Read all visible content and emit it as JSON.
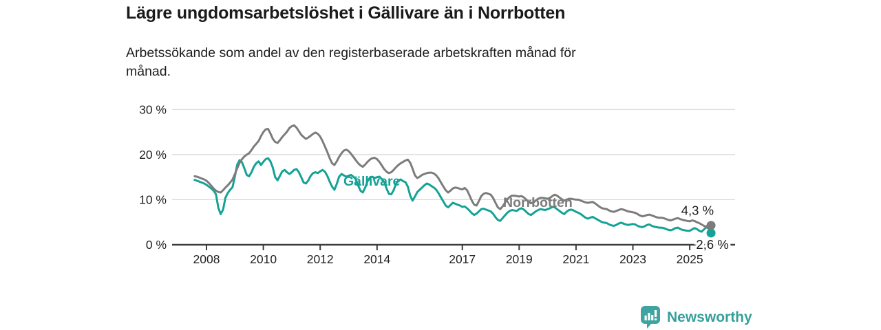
{
  "header": {
    "title": "Lägre ungdomsarbetslöshet i Gällivare än i Norrbotten",
    "subtitle": "Arbetssökande som andel av den registerbaserade arbetskraften månad för\nmånad."
  },
  "chart_data": {
    "type": "line",
    "title": "Lägre ungdomsarbetslöshet i Gällivare än i Norrbotten",
    "subtitle": "Arbetssökande som andel av den registerbaserade arbetskraften månad för månad.",
    "grid": "horizontal",
    "ylim": [
      0,
      30
    ],
    "y_axis": {
      "ticks": [
        {
          "value": 0,
          "label": "0 %"
        },
        {
          "value": 10,
          "label": "10 %"
        },
        {
          "value": 20,
          "label": "20 %"
        },
        {
          "value": 30,
          "label": "30 %"
        }
      ]
    },
    "x_axis": {
      "start_year": 2007,
      "start_month": 8,
      "frequency": "monthly",
      "ticks": [
        {
          "year": 2008,
          "label": "2008"
        },
        {
          "year": 2010,
          "label": "2010"
        },
        {
          "year": 2012,
          "label": "2012"
        },
        {
          "year": 2014,
          "label": "2014"
        },
        {
          "year": 2017,
          "label": "2017"
        },
        {
          "year": 2019,
          "label": "2019"
        },
        {
          "year": 2021,
          "label": "2021"
        },
        {
          "year": 2023,
          "label": "2023"
        },
        {
          "year": 2025,
          "label": "2025"
        }
      ]
    },
    "style": {
      "grid_color": "#d9d9d9",
      "axis_color": "#3c3c3c",
      "axis_text_color": "#222222",
      "annotation_color": "#1a1a1a"
    },
    "series": [
      {
        "name": "Gällivare",
        "color": "#15a296",
        "end_label": "2,6 %",
        "end_value": 2.6,
        "values": [
          14.4,
          14.2,
          14.0,
          13.8,
          13.6,
          13.3,
          12.9,
          12.5,
          12.0,
          11.2,
          8.2,
          6.8,
          7.8,
          10.4,
          11.5,
          12.2,
          12.8,
          15.2,
          17.8,
          18.8,
          18.3,
          16.9,
          15.5,
          15.2,
          16.1,
          17.3,
          18.1,
          18.5,
          17.7,
          18.4,
          19.0,
          19.2,
          18.5,
          17.1,
          15.0,
          14.3,
          15.3,
          16.3,
          16.6,
          16.1,
          15.7,
          16.1,
          16.6,
          16.8,
          16.1,
          15.0,
          13.8,
          13.6,
          14.3,
          15.3,
          15.9,
          16.1,
          15.9,
          16.3,
          16.6,
          16.2,
          15.3,
          14.0,
          12.9,
          12.2,
          13.5,
          15.1,
          15.7,
          15.4,
          15.1,
          15.3,
          15.5,
          15.1,
          14.6,
          13.2,
          12.0,
          11.6,
          12.7,
          14.1,
          14.9,
          15.1,
          14.8,
          15.0,
          15.1,
          14.6,
          13.9,
          12.5,
          11.3,
          11.2,
          12.1,
          13.5,
          14.3,
          14.5,
          14.1,
          13.9,
          12.9,
          10.9,
          9.8,
          10.7,
          11.7,
          12.2,
          12.7,
          13.2,
          13.6,
          13.4,
          13.0,
          12.7,
          12.2,
          11.4,
          10.5,
          9.6,
          8.7,
          8.3,
          8.8,
          9.3,
          9.1,
          8.9,
          8.7,
          8.4,
          8.5,
          8.1,
          7.6,
          7.0,
          6.6,
          6.9,
          7.4,
          7.9,
          8.0,
          7.8,
          7.6,
          7.4,
          6.9,
          6.1,
          5.5,
          5.3,
          5.9,
          6.5,
          7.1,
          7.5,
          7.7,
          7.6,
          7.5,
          7.9,
          8.1,
          7.8,
          7.3,
          6.8,
          6.6,
          7.0,
          7.4,
          7.7,
          7.9,
          7.8,
          7.7,
          7.9,
          8.1,
          8.4,
          8.3,
          7.9,
          7.5,
          7.1,
          6.8,
          7.3,
          7.7,
          7.8,
          7.6,
          7.3,
          7.1,
          6.8,
          6.4,
          6.0,
          5.8,
          6.0,
          6.2,
          5.9,
          5.6,
          5.3,
          5.0,
          4.9,
          4.8,
          4.5,
          4.3,
          4.2,
          4.4,
          4.7,
          4.9,
          4.7,
          4.5,
          4.4,
          4.5,
          4.6,
          4.5,
          4.2,
          4.0,
          3.9,
          4.1,
          4.4,
          4.5,
          4.2,
          4.0,
          3.9,
          3.8,
          3.8,
          3.7,
          3.5,
          3.3,
          3.2,
          3.4,
          3.7,
          3.8,
          3.5,
          3.3,
          3.2,
          3.1,
          3.1,
          3.4,
          3.7,
          3.5,
          3.1,
          2.9,
          3.4,
          3.9,
          3.6,
          2.6
        ]
      },
      {
        "name": "Norrbotten",
        "color": "#7c7c7c",
        "end_label": "4,3 %",
        "end_value": 4.3,
        "values": [
          15.2,
          15.1,
          14.9,
          14.7,
          14.5,
          14.2,
          13.7,
          13.1,
          12.5,
          12.0,
          11.7,
          11.6,
          12.1,
          12.7,
          13.2,
          13.8,
          14.5,
          15.7,
          17.0,
          18.2,
          19.0,
          19.6,
          20.0,
          20.3,
          21.0,
          21.8,
          22.4,
          23.0,
          24.1,
          25.0,
          25.6,
          25.7,
          24.7,
          23.5,
          22.8,
          22.6,
          23.2,
          23.9,
          24.5,
          25.1,
          25.9,
          26.3,
          26.5,
          26.0,
          25.2,
          24.4,
          23.9,
          23.5,
          23.8,
          24.2,
          24.6,
          24.9,
          24.6,
          24.0,
          23.0,
          21.8,
          20.6,
          19.2,
          18.1,
          17.7,
          18.5,
          19.5,
          20.3,
          20.9,
          21.1,
          20.8,
          20.2,
          19.5,
          18.8,
          18.1,
          17.6,
          17.3,
          17.8,
          18.4,
          18.9,
          19.2,
          19.3,
          19.0,
          18.4,
          17.6,
          16.8,
          16.2,
          15.9,
          16.1,
          16.6,
          17.2,
          17.7,
          18.1,
          18.4,
          18.7,
          18.9,
          18.2,
          16.9,
          15.4,
          14.8,
          15.1,
          15.5,
          15.7,
          15.9,
          16.0,
          16.0,
          15.8,
          15.4,
          14.7,
          13.8,
          12.9,
          12.1,
          11.6,
          12.0,
          12.5,
          12.7,
          12.6,
          12.4,
          12.3,
          12.6,
          12.1,
          11.0,
          9.8,
          8.9,
          8.7,
          9.7,
          10.8,
          11.3,
          11.5,
          11.3,
          11.1,
          10.4,
          9.3,
          8.3,
          7.9,
          8.5,
          9.3,
          10.1,
          10.6,
          10.9,
          10.9,
          10.8,
          10.7,
          10.8,
          10.5,
          10.0,
          9.5,
          9.2,
          9.4,
          9.8,
          10.2,
          10.4,
          10.4,
          10.3,
          10.2,
          10.4,
          10.8,
          11.1,
          10.9,
          10.5,
          10.1,
          9.8,
          10.0,
          10.2,
          10.2,
          10.1,
          10.0,
          10.0,
          9.8,
          9.6,
          9.4,
          9.3,
          9.4,
          9.5,
          9.2,
          8.8,
          8.4,
          8.1,
          8.0,
          7.9,
          7.6,
          7.4,
          7.3,
          7.5,
          7.7,
          7.9,
          7.8,
          7.6,
          7.4,
          7.3,
          7.2,
          7.1,
          6.8,
          6.5,
          6.3,
          6.4,
          6.6,
          6.7,
          6.5,
          6.3,
          6.1,
          6.0,
          6.0,
          5.9,
          5.7,
          5.5,
          5.4,
          5.6,
          5.8,
          5.9,
          5.7,
          5.5,
          5.4,
          5.3,
          5.2,
          5.4,
          5.3,
          5.0,
          4.8,
          4.5,
          4.2,
          4.0,
          4.5,
          4.3
        ]
      }
    ]
  },
  "footer": {
    "brand": "Newsworthy",
    "brand_color": "#35a09b",
    "icon": "newsworthy-speech-bubble-bar-chart-icon",
    "icon_color": "#3fa3a0"
  }
}
